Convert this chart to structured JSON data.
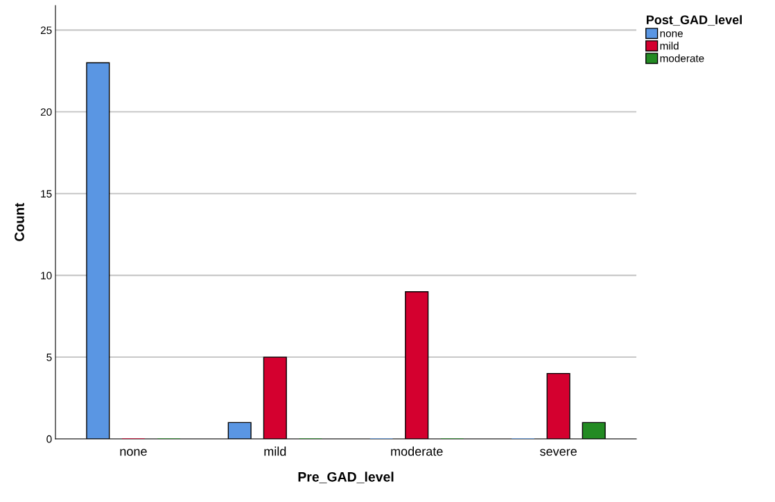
{
  "chart_data": {
    "type": "bar",
    "xlabel": "Pre_GAD_level",
    "ylabel": "Count",
    "legend_title": "Post_GAD_level",
    "categories": [
      "none",
      "mild",
      "moderate",
      "severe"
    ],
    "series": [
      {
        "name": "none",
        "color": "#5a96e3",
        "values": [
          23,
          1,
          0,
          0
        ]
      },
      {
        "name": "mild",
        "color": "#d4002f",
        "values": [
          0,
          5,
          9,
          4
        ]
      },
      {
        "name": "moderate",
        "color": "#238b23",
        "values": [
          0,
          0,
          0,
          1
        ]
      }
    ],
    "ylim": [
      0,
      26.5
    ],
    "yticks": [
      0,
      5,
      10,
      15,
      20,
      25
    ],
    "grid": "y",
    "legend": "top right"
  }
}
